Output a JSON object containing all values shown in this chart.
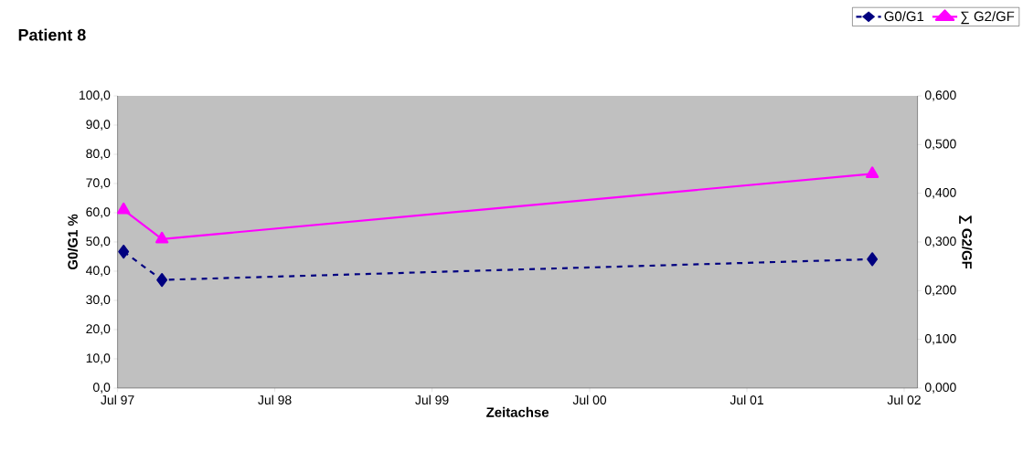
{
  "chart_data": {
    "type": "line",
    "title": "Patient 8",
    "xlabel": "Zeitachse",
    "ylabel": "G0/G1 %",
    "y2label": "∑ G2/GF",
    "x": [
      "1997-07-15",
      "1997-10-12",
      "2002-04-18"
    ],
    "series": [
      {
        "name": "G0/G1",
        "color": "#000080",
        "values": [
          46.7,
          37.0,
          44.1
        ],
        "marker": "diamond",
        "line_style": "dashed"
      },
      {
        "name": "∑ G2/GF",
        "color": "#ff00ff",
        "values": [
          0.366,
          0.306,
          0.44
        ],
        "marker": "triangle",
        "line_style": "solid",
        "axis": "y2"
      }
    ],
    "xlim": [
      "1997-07-01",
      "2002-08-01"
    ],
    "xticks": [
      {
        "value": "1997-07-01",
        "label": "Jul 97"
      },
      {
        "value": "1998-07-01",
        "label": "Jul 98"
      },
      {
        "value": "1999-07-01",
        "label": "Jul 99"
      },
      {
        "value": "2000-07-01",
        "label": "Jul 00"
      },
      {
        "value": "2001-07-01",
        "label": "Jul 01"
      },
      {
        "value": "2002-07-01",
        "label": "Jul 02"
      }
    ],
    "ylim": [
      0,
      100
    ],
    "yticks": [
      {
        "value": 0,
        "label": "0,0"
      },
      {
        "value": 10,
        "label": "10,0"
      },
      {
        "value": 20,
        "label": "20,0"
      },
      {
        "value": 30,
        "label": "30,0"
      },
      {
        "value": 40,
        "label": "40,0"
      },
      {
        "value": 50,
        "label": "50,0"
      },
      {
        "value": 60,
        "label": "60,0"
      },
      {
        "value": 70,
        "label": "70,0"
      },
      {
        "value": 80,
        "label": "80,0"
      },
      {
        "value": 90,
        "label": "90,0"
      },
      {
        "value": 100,
        "label": "100,0"
      }
    ],
    "y2lim": [
      0,
      0.6
    ],
    "y2ticks": [
      {
        "value": 0,
        "label": "0,000"
      },
      {
        "value": 0.1,
        "label": "0,100"
      },
      {
        "value": 0.2,
        "label": "0,200"
      },
      {
        "value": 0.3,
        "label": "0,300"
      },
      {
        "value": 0.4,
        "label": "0,400"
      },
      {
        "value": 0.5,
        "label": "0,500"
      },
      {
        "value": 0.6,
        "label": "0,600"
      }
    ],
    "grid": false,
    "legend": "top right"
  }
}
